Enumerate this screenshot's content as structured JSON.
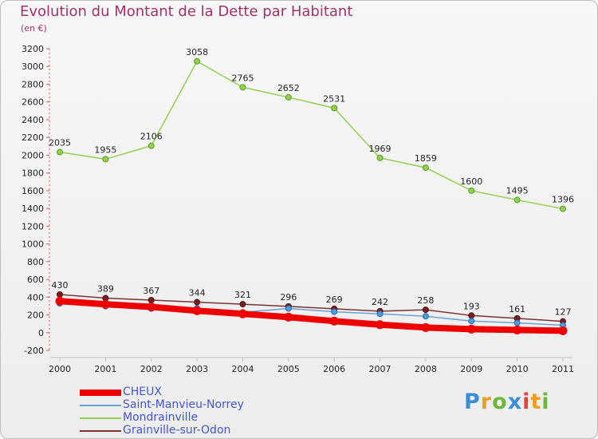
{
  "header": {
    "title": "Evolution du Montant de la Dette par Habitant",
    "unit": "(en €)"
  },
  "logo": {
    "text": "Proxiti"
  },
  "chart_data": {
    "type": "line",
    "title": "Evolution du Montant de la Dette par Habitant",
    "ylabel": "(en €)",
    "xlabel": "",
    "x": [
      "2000",
      "2001",
      "2002",
      "2003",
      "2004",
      "2005",
      "2006",
      "2007",
      "2008",
      "2009",
      "2010",
      "2011"
    ],
    "ylim": [
      -200,
      3200
    ],
    "yticks": [
      -200,
      0,
      200,
      400,
      600,
      800,
      1000,
      1200,
      1400,
      1600,
      1800,
      2000,
      2200,
      2400,
      2600,
      2800,
      3000,
      3200
    ],
    "grid": false,
    "legend_position": "bottom-left",
    "series": [
      {
        "name": "CHEUX",
        "color": "#ee0000",
        "values": [
          355,
          320,
          290,
          247,
          212,
          175,
          130,
          90,
          58,
          40,
          30,
          22
        ]
      },
      {
        "name": "Saint-Manvieu-Norrey",
        "color": "#6aa1d4",
        "values": [
          330,
          298,
          271,
          275,
          229,
          272,
          235,
          212,
          185,
          131,
          110,
          83
        ]
      },
      {
        "name": "Mondrainville",
        "color": "#92d050",
        "values": [
          2035,
          1955,
          2106,
          3058,
          2765,
          2652,
          2531,
          1969,
          1859,
          1600,
          1495,
          1396
        ],
        "labels": [
          "2035",
          "1955",
          "2106",
          "3058",
          "2765",
          "2652",
          "2531",
          "1969",
          "1859",
          "1600",
          "1495",
          "1396"
        ]
      },
      {
        "name": "Grainville-sur-Odon",
        "color": "#7a3333",
        "values": [
          430,
          389,
          367,
          344,
          321,
          296,
          269,
          242,
          258,
          193,
          161,
          127
        ],
        "labels": [
          "430",
          "389",
          "367",
          "344",
          "321",
          "296",
          "269",
          "242",
          "258",
          "193",
          "161",
          "127"
        ]
      }
    ]
  }
}
